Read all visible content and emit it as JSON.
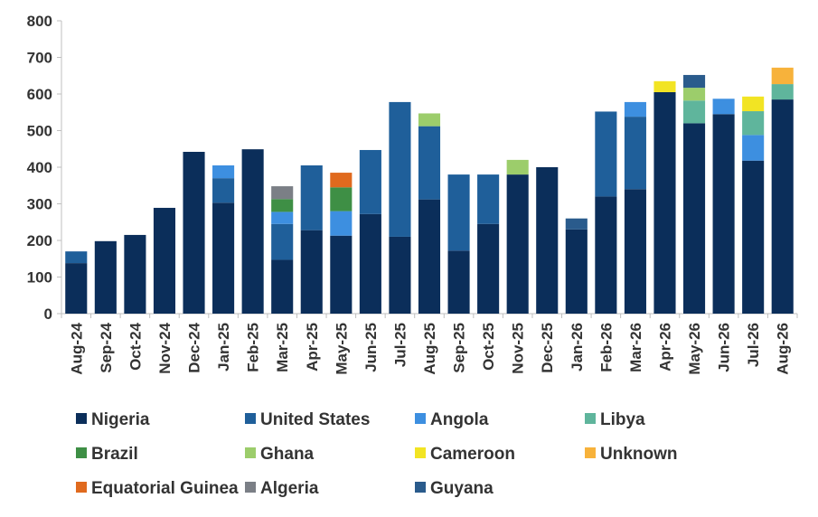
{
  "chart_data": {
    "type": "bar",
    "stacked": true,
    "title": "",
    "xlabel": "",
    "ylabel": "",
    "ylim": [
      0,
      800
    ],
    "yticks": [
      0,
      100,
      200,
      300,
      400,
      500,
      600,
      700,
      800
    ],
    "grid": false,
    "legend_position": "bottom",
    "categories": [
      "Aug-24",
      "Sep-24",
      "Oct-24",
      "Nov-24",
      "Dec-24",
      "Jan-25",
      "Feb-25",
      "Mar-25",
      "Apr-25",
      "May-25",
      "Jun-25",
      "Jul-25",
      "Aug-25",
      "Sep-25",
      "Oct-25",
      "Nov-25",
      "Dec-25",
      "Jan-26",
      "Feb-26",
      "Mar-26",
      "Apr-26",
      "May-26",
      "Jun-26",
      "Jul-26",
      "Aug-26"
    ],
    "series": [
      {
        "name": "Nigeria",
        "color": "#0b2e5a",
        "values": [
          138,
          198,
          215,
          289,
          442,
          303,
          449,
          147,
          228,
          213,
          272,
          210,
          312,
          172,
          245,
          380,
          400,
          230,
          320,
          340,
          605,
          520,
          545,
          418,
          585
        ]
      },
      {
        "name": "United States",
        "color": "#1f5f9a",
        "values": [
          32,
          0,
          0,
          0,
          0,
          67,
          0,
          98,
          177,
          0,
          175,
          368,
          200,
          208,
          135,
          0,
          0,
          0,
          232,
          198,
          0,
          0,
          0,
          0,
          0
        ]
      },
      {
        "name": "Angola",
        "color": "#3d8fe0",
        "values": [
          0,
          0,
          0,
          0,
          0,
          35,
          0,
          33,
          0,
          67,
          0,
          0,
          0,
          0,
          0,
          0,
          0,
          0,
          0,
          40,
          0,
          0,
          42,
          70,
          0
        ]
      },
      {
        "name": "Libya",
        "color": "#5fb59c",
        "values": [
          0,
          0,
          0,
          0,
          0,
          0,
          0,
          0,
          0,
          0,
          0,
          0,
          0,
          0,
          0,
          0,
          0,
          0,
          0,
          0,
          0,
          62,
          0,
          65,
          42
        ]
      },
      {
        "name": "Brazil",
        "color": "#3e8f45",
        "values": [
          0,
          0,
          0,
          0,
          0,
          0,
          0,
          35,
          0,
          65,
          0,
          0,
          0,
          0,
          0,
          0,
          0,
          0,
          0,
          0,
          0,
          0,
          0,
          0,
          0
        ]
      },
      {
        "name": "Ghana",
        "color": "#9ccd6b",
        "values": [
          0,
          0,
          0,
          0,
          0,
          0,
          0,
          0,
          0,
          0,
          0,
          0,
          35,
          0,
          0,
          40,
          0,
          0,
          0,
          0,
          0,
          35,
          0,
          0,
          0
        ]
      },
      {
        "name": "Cameroon",
        "color": "#f2e423",
        "values": [
          0,
          0,
          0,
          0,
          0,
          0,
          0,
          0,
          0,
          0,
          0,
          0,
          0,
          0,
          0,
          0,
          0,
          0,
          0,
          0,
          30,
          0,
          0,
          40,
          0
        ]
      },
      {
        "name": "Unknown",
        "color": "#f7b23b",
        "values": [
          0,
          0,
          0,
          0,
          0,
          0,
          0,
          0,
          0,
          0,
          0,
          0,
          0,
          0,
          0,
          0,
          0,
          0,
          0,
          0,
          0,
          0,
          0,
          0,
          45
        ]
      },
      {
        "name": "Equatorial Guinea",
        "color": "#e06a1e",
        "values": [
          0,
          0,
          0,
          0,
          0,
          0,
          0,
          0,
          0,
          40,
          0,
          0,
          0,
          0,
          0,
          0,
          0,
          0,
          0,
          0,
          0,
          0,
          0,
          0,
          0
        ]
      },
      {
        "name": "Algeria",
        "color": "#7b7f86",
        "values": [
          0,
          0,
          0,
          0,
          0,
          0,
          0,
          35,
          0,
          0,
          0,
          0,
          0,
          0,
          0,
          0,
          0,
          0,
          0,
          0,
          0,
          0,
          0,
          0,
          0
        ]
      },
      {
        "name": "Guyana",
        "color": "#2a5b8c",
        "values": [
          0,
          0,
          0,
          0,
          0,
          0,
          0,
          0,
          0,
          0,
          0,
          0,
          0,
          0,
          0,
          0,
          0,
          30,
          0,
          0,
          0,
          35,
          0,
          0,
          0
        ]
      }
    ],
    "legend_order": [
      "Nigeria",
      "United States",
      "Angola",
      "Libya",
      "Brazil",
      "Ghana",
      "Cameroon",
      "Unknown",
      "Equatorial Guinea",
      "Algeria",
      "Guyana"
    ]
  }
}
